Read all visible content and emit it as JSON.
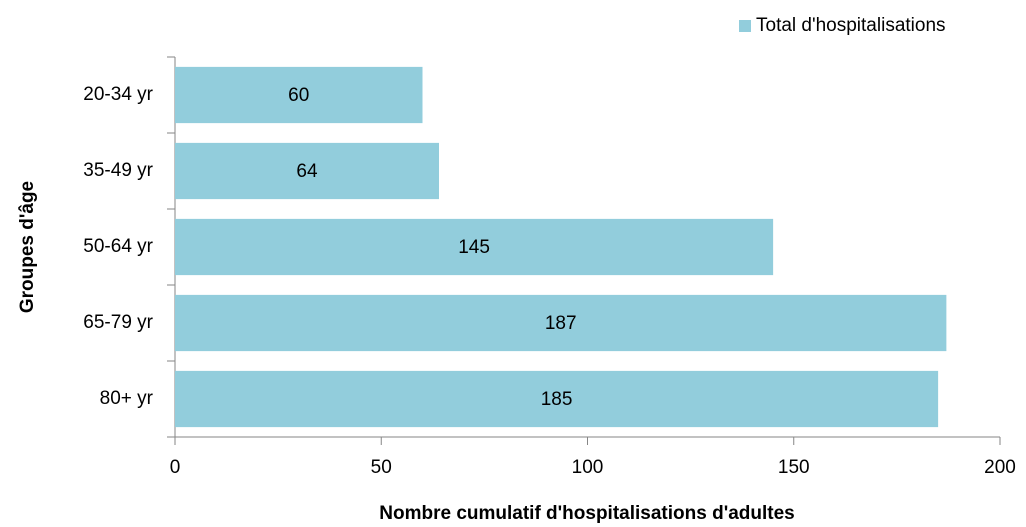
{
  "chart_data": {
    "type": "bar",
    "orientation": "horizontal",
    "x_label": "Nombre cumulatif d'hospitalisations d'adultes",
    "y_label": "Groupes d'âge",
    "categories": [
      "20-34 yr",
      "35-49 yr",
      "50-64 yr",
      "65-79 yr",
      "80+ yr"
    ],
    "series": [
      {
        "name": "Total d'hospitalisations",
        "color": "#92cddc",
        "values": [
          60,
          64,
          145,
          187,
          185
        ]
      }
    ],
    "xlim": [
      0,
      200
    ],
    "xticks": [
      0,
      50,
      100,
      150,
      200
    ],
    "legend": "top-right",
    "grid": false
  }
}
